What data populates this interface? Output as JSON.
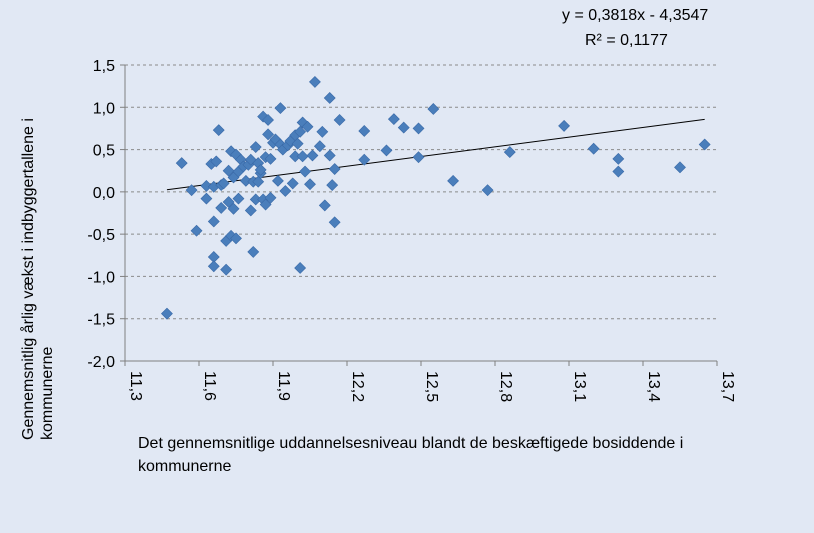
{
  "chart_data": {
    "type": "scatter",
    "title": "",
    "xlabel": "Det gennemsnitlige uddannelsesniveau  blandt de beskæftigede bosiddende i kommunerne",
    "ylabel": "Gennemsnitlig årlig vækst i indbyggertallene i kommunerne",
    "xlim": [
      11.3,
      13.7
    ],
    "ylim": [
      -2.0,
      1.5
    ],
    "x_ticks": [
      "11,3",
      "11,6",
      "11,9",
      "12,2",
      "12,5",
      "12,8",
      "13,1",
      "13,4",
      "13,7"
    ],
    "y_ticks": [
      "1,5",
      "1,0",
      "0,5",
      "0,0",
      "-0,5",
      "-1,0",
      "-1,5",
      "-2,0"
    ],
    "grid": "horizontal dashed",
    "marker_color": "#4a7ebb",
    "trendline": {
      "type": "linear",
      "slope": 0.3818,
      "intercept": -4.3547,
      "x_range": [
        11.47,
        13.65
      ],
      "equation": "y = 0,3818x - 4,3547",
      "r_squared": "R² = 0,1177"
    },
    "points": [
      [
        11.47,
        -1.44
      ],
      [
        11.53,
        0.34
      ],
      [
        11.57,
        0.02
      ],
      [
        11.59,
        -0.46
      ],
      [
        11.63,
        0.07
      ],
      [
        11.63,
        -0.08
      ],
      [
        11.65,
        0.33
      ],
      [
        11.66,
        0.06
      ],
      [
        11.66,
        -0.35
      ],
      [
        11.66,
        -0.77
      ],
      [
        11.66,
        -0.88
      ],
      [
        11.67,
        0.36
      ],
      [
        11.68,
        0.73
      ],
      [
        11.69,
        0.08
      ],
      [
        11.69,
        -0.19
      ],
      [
        11.7,
        0.1
      ],
      [
        11.71,
        -0.58
      ],
      [
        11.71,
        -0.92
      ],
      [
        11.72,
        -0.12
      ],
      [
        11.72,
        0.25
      ],
      [
        11.73,
        0.48
      ],
      [
        11.73,
        -0.52
      ],
      [
        11.74,
        -0.2
      ],
      [
        11.74,
        0.17
      ],
      [
        11.75,
        0.44
      ],
      [
        11.75,
        -0.55
      ],
      [
        11.76,
        0.24
      ],
      [
        11.76,
        -0.08
      ],
      [
        11.77,
        0.38
      ],
      [
        11.78,
        0.3
      ],
      [
        11.79,
        0.13
      ],
      [
        11.8,
        0.32
      ],
      [
        11.81,
        0.38
      ],
      [
        11.81,
        -0.22
      ],
      [
        11.82,
        -0.71
      ],
      [
        11.82,
        0.12
      ],
      [
        11.83,
        0.53
      ],
      [
        11.83,
        -0.09
      ],
      [
        11.84,
        0.34
      ],
      [
        11.84,
        0.12
      ],
      [
        11.85,
        0.22
      ],
      [
        11.85,
        0.26
      ],
      [
        11.86,
        -0.09
      ],
      [
        11.86,
        0.89
      ],
      [
        11.87,
        -0.15
      ],
      [
        11.87,
        0.41
      ],
      [
        11.88,
        0.68
      ],
      [
        11.88,
        0.85
      ],
      [
        11.89,
        -0.07
      ],
      [
        11.89,
        0.39
      ],
      [
        11.9,
        0.58
      ],
      [
        11.91,
        0.62
      ],
      [
        11.92,
        0.13
      ],
      [
        11.93,
        0.99
      ],
      [
        11.93,
        0.56
      ],
      [
        11.94,
        0.5
      ],
      [
        11.95,
        0.01
      ],
      [
        11.96,
        0.55
      ],
      [
        11.97,
        0.6
      ],
      [
        11.98,
        0.1
      ],
      [
        11.99,
        0.42
      ],
      [
        11.99,
        0.67
      ],
      [
        12.0,
        0.57
      ],
      [
        12.01,
        -0.9
      ],
      [
        12.01,
        0.71
      ],
      [
        12.02,
        0.82
      ],
      [
        12.02,
        0.42
      ],
      [
        12.03,
        0.24
      ],
      [
        12.04,
        0.77
      ],
      [
        12.05,
        0.09
      ],
      [
        12.06,
        0.43
      ],
      [
        12.07,
        1.3
      ],
      [
        12.09,
        0.54
      ],
      [
        12.1,
        0.71
      ],
      [
        12.11,
        -0.16
      ],
      [
        12.13,
        1.11
      ],
      [
        12.13,
        0.43
      ],
      [
        12.14,
        0.08
      ],
      [
        12.15,
        -0.36
      ],
      [
        12.15,
        0.27
      ],
      [
        12.17,
        0.85
      ],
      [
        12.27,
        0.38
      ],
      [
        12.27,
        0.72
      ],
      [
        12.36,
        0.49
      ],
      [
        12.39,
        0.86
      ],
      [
        12.43,
        0.76
      ],
      [
        12.49,
        0.41
      ],
      [
        12.49,
        0.75
      ],
      [
        12.55,
        0.98
      ],
      [
        12.63,
        0.13
      ],
      [
        12.77,
        0.02
      ],
      [
        12.86,
        0.47
      ],
      [
        13.08,
        0.78
      ],
      [
        13.2,
        0.51
      ],
      [
        13.3,
        0.39
      ],
      [
        13.3,
        0.24
      ],
      [
        13.55,
        0.29
      ],
      [
        13.65,
        0.56
      ]
    ]
  }
}
